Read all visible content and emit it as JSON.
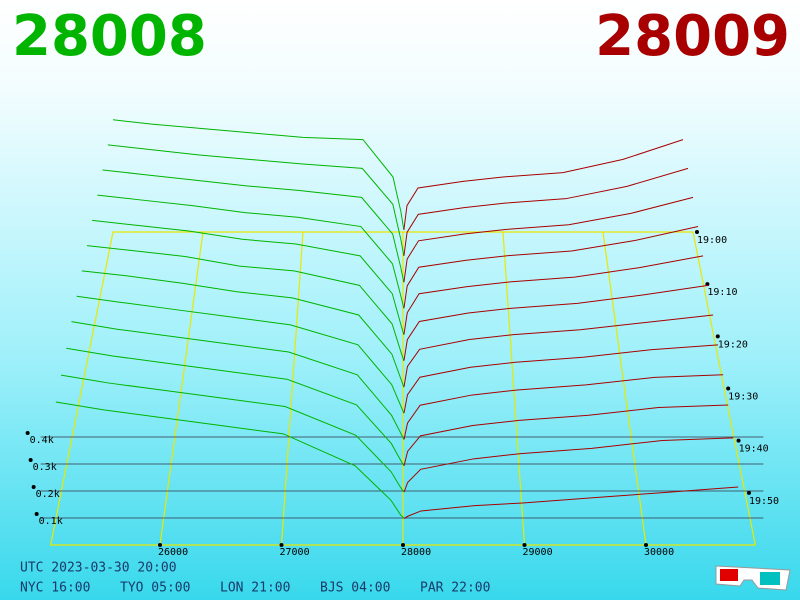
{
  "chart_data": {
    "type": "depth3d",
    "bid_label": "28008",
    "ask_label": "28009",
    "bid_color": "#00b400",
    "ask_color": "#a80000",
    "xlim": [
      25100,
      30900
    ],
    "xticks": [
      26000,
      27000,
      28000,
      29000,
      30000
    ],
    "ylim": [
      0,
      500
    ],
    "yticks": [
      {
        "value": 100,
        "label": "0.1k"
      },
      {
        "value": 200,
        "label": "0.2k"
      },
      {
        "value": 300,
        "label": "0.3k"
      },
      {
        "value": 400,
        "label": "0.4k"
      }
    ],
    "zlim": [
      0,
      60
    ],
    "zticks": [
      {
        "value": 0,
        "label": "19:00"
      },
      {
        "value": 10,
        "label": "19:10"
      },
      {
        "value": 20,
        "label": "19:20"
      },
      {
        "value": 30,
        "label": "19:30"
      },
      {
        "value": 40,
        "label": "19:40"
      },
      {
        "value": 50,
        "label": "19:50"
      }
    ],
    "bid_prices": [
      28008,
      27980,
      27900,
      27600,
      27000,
      26500,
      26000,
      25500,
      25100
    ],
    "ask_prices": [
      28009,
      28040,
      28150,
      28600,
      29000,
      29600,
      30200,
      30800
    ],
    "bids": [
      {
        "z": 0,
        "values": [
          10,
          90,
          250,
          420,
          430,
          450,
          470,
          490,
          510
        ]
      },
      {
        "z": 5,
        "values": [
          10,
          80,
          240,
          400,
          420,
          440,
          460,
          485,
          505
        ]
      },
      {
        "z": 10,
        "values": [
          8,
          70,
          220,
          380,
          410,
          430,
          455,
          480,
          500
        ]
      },
      {
        "z": 15,
        "values": [
          8,
          60,
          200,
          360,
          400,
          420,
          450,
          475,
          495
        ]
      },
      {
        "z": 20,
        "values": [
          6,
          50,
          180,
          340,
          390,
          410,
          445,
          470,
          490
        ]
      },
      {
        "z": 25,
        "values": [
          6,
          45,
          160,
          320,
          380,
          400,
          440,
          465,
          485
        ]
      },
      {
        "z": 30,
        "values": [
          5,
          40,
          140,
          300,
          370,
          395,
          430,
          460,
          480
        ]
      },
      {
        "z": 35,
        "values": [
          5,
          35,
          120,
          280,
          360,
          390,
          420,
          450,
          475
        ]
      },
      {
        "z": 40,
        "values": [
          4,
          30,
          100,
          260,
          350,
          380,
          410,
          440,
          470
        ]
      },
      {
        "z": 45,
        "values": [
          4,
          25,
          90,
          240,
          340,
          370,
          400,
          430,
          460
        ]
      },
      {
        "z": 50,
        "values": [
          3,
          20,
          80,
          220,
          330,
          360,
          390,
          420,
          450
        ]
      },
      {
        "z": 55,
        "values": [
          3,
          15,
          70,
          200,
          320,
          350,
          380,
          410,
          440
        ]
      }
    ],
    "asks": [
      {
        "z": 0,
        "values": [
          10,
          120,
          200,
          230,
          250,
          270,
          330,
          420
        ]
      },
      {
        "z": 5,
        "values": [
          10,
          115,
          195,
          225,
          245,
          265,
          320,
          400
        ]
      },
      {
        "z": 10,
        "values": [
          9,
          110,
          190,
          220,
          240,
          260,
          310,
          380
        ]
      },
      {
        "z": 15,
        "values": [
          9,
          105,
          185,
          215,
          235,
          255,
          300,
          360
        ]
      },
      {
        "z": 20,
        "values": [
          8,
          100,
          180,
          210,
          230,
          250,
          290,
          340
        ]
      },
      {
        "z": 25,
        "values": [
          8,
          95,
          170,
          205,
          225,
          245,
          280,
          320
        ]
      },
      {
        "z": 30,
        "values": [
          7,
          90,
          160,
          200,
          220,
          240,
          270,
          300
        ]
      },
      {
        "z": 35,
        "values": [
          6,
          80,
          150,
          190,
          210,
          230,
          260,
          280
        ]
      },
      {
        "z": 40,
        "values": [
          5,
          70,
          140,
          180,
          200,
          220,
          250,
          260
        ]
      },
      {
        "z": 45,
        "values": [
          4,
          60,
          120,
          160,
          180,
          200,
          230,
          240
        ]
      },
      {
        "z": 50,
        "values": [
          3,
          40,
          90,
          130,
          150,
          170,
          200,
          210
        ]
      },
      {
        "z": 55,
        "values": [
          2,
          10,
          30,
          50,
          60,
          80,
          100,
          120
        ]
      }
    ]
  },
  "footer": {
    "utc": "UTC 2023-03-30 20:00",
    "clocks": [
      "NYC 16:00",
      "TYO 05:00",
      "LON 21:00",
      "BJS 04:00",
      "PAR 22:00"
    ]
  }
}
